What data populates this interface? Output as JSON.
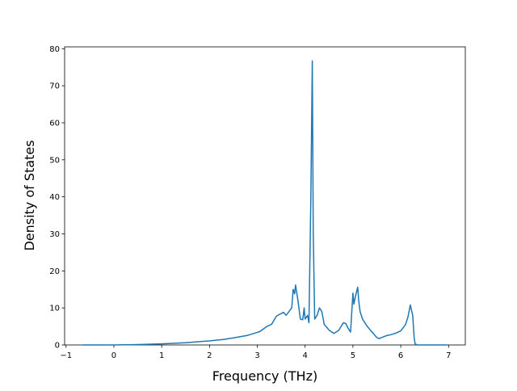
{
  "chart_data": {
    "type": "line",
    "xlabel": "Frequency (THz)",
    "ylabel": "Density of States",
    "x": [
      -0.65,
      0,
      0.5,
      1,
      1.5,
      2,
      2.3,
      2.5,
      2.8,
      3.0,
      3.05,
      3.2,
      3.3,
      3.4,
      3.5,
      3.55,
      3.6,
      3.65,
      3.7,
      3.72,
      3.75,
      3.78,
      3.8,
      3.85,
      3.9,
      3.95,
      3.98,
      4.0,
      4.05,
      4.08,
      4.12,
      4.15,
      4.17,
      4.2,
      4.25,
      4.3,
      4.35,
      4.4,
      4.45,
      4.5,
      4.6,
      4.7,
      4.8,
      4.85,
      4.9,
      4.95,
      5.0,
      5.02,
      5.05,
      5.1,
      5.12,
      5.15,
      5.2,
      5.3,
      5.4,
      5.5,
      5.55,
      5.6,
      5.7,
      5.8,
      5.9,
      6.0,
      6.1,
      6.15,
      6.2,
      6.25,
      6.28,
      6.3,
      6.35,
      6.5,
      6.97
    ],
    "series": [
      {
        "color": "#1f77b4",
        "values": [
          0,
          0,
          0.1,
          0.3,
          0.6,
          1.1,
          1.5,
          1.9,
          2.6,
          3.4,
          3.6,
          5,
          5.6,
          7.8,
          8.5,
          8.8,
          8,
          8.8,
          9.7,
          10,
          15,
          13.8,
          16.2,
          12,
          7,
          6.8,
          10,
          7,
          8,
          6,
          40,
          76.7,
          30,
          7,
          8,
          10,
          9,
          5.5,
          4.8,
          4,
          3.1,
          3.9,
          6,
          5.8,
          4.5,
          3.5,
          14,
          11,
          13,
          15.6,
          12,
          9,
          7,
          5,
          3.5,
          2,
          1.7,
          2,
          2.5,
          2.8,
          3.2,
          3.8,
          5.5,
          7.5,
          10.8,
          8,
          2,
          0.3,
          0,
          0,
          0
        ]
      }
    ],
    "xlim": [
      -1.03,
      7.35
    ],
    "ylim": [
      0,
      80.5
    ],
    "xticks": [
      {
        "value": -1,
        "label": "−1"
      },
      0,
      1,
      2,
      3,
      4,
      5,
      6,
      7
    ],
    "yticks": [
      0,
      10,
      20,
      30,
      40,
      50,
      60,
      70,
      80
    ]
  }
}
